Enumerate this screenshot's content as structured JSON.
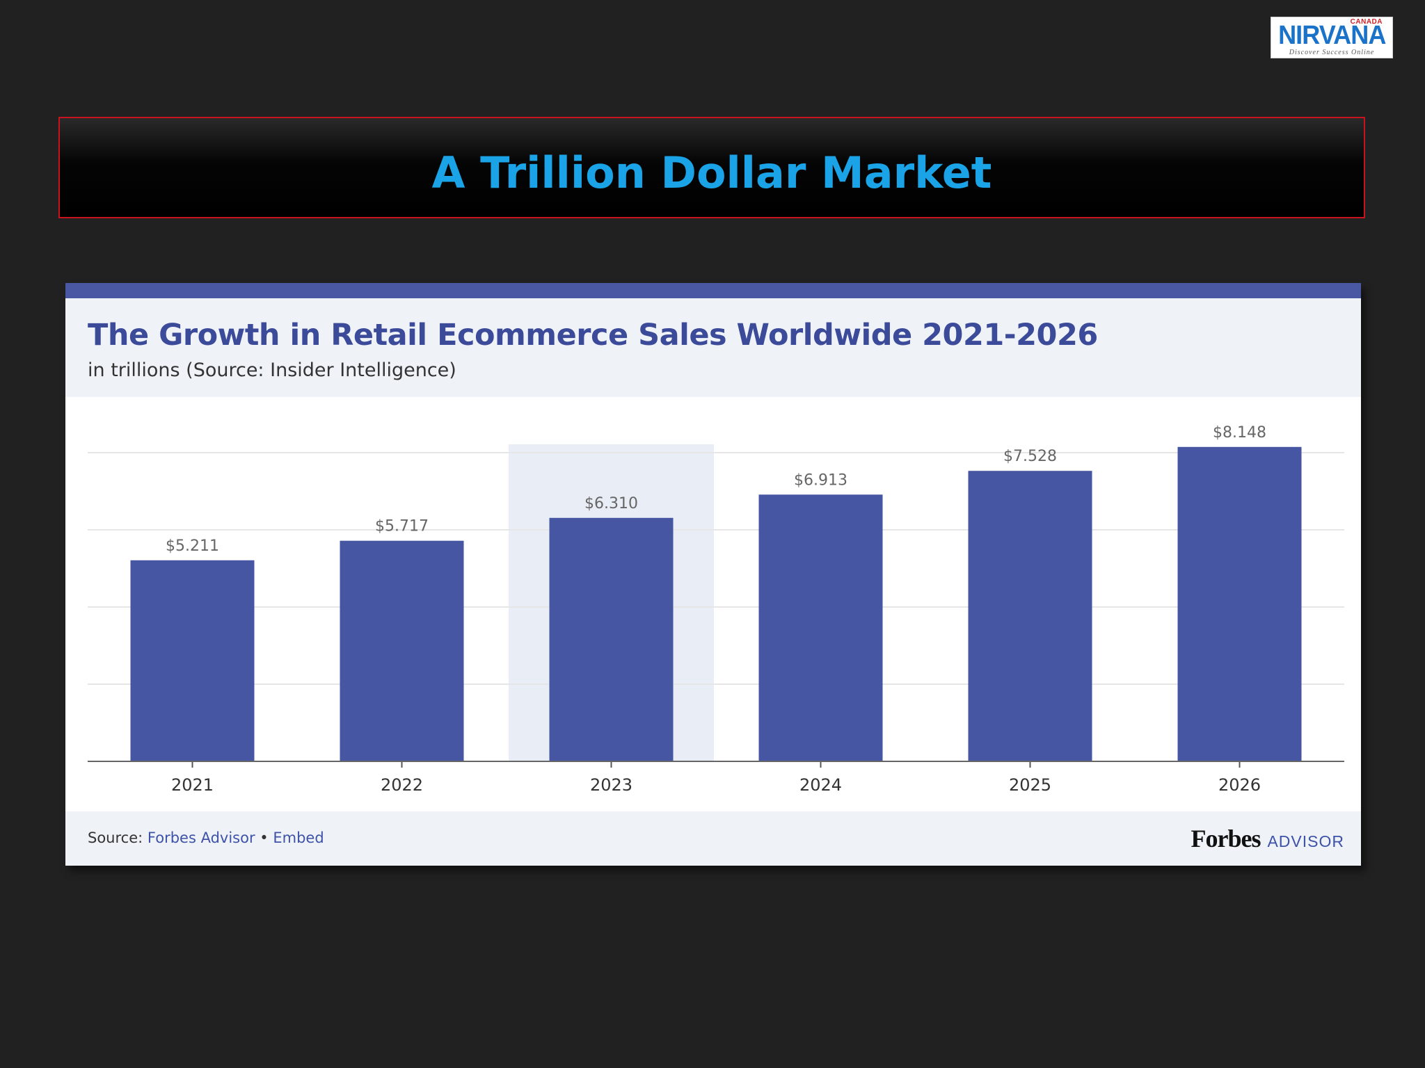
{
  "logo": {
    "brand": "NIRVANA",
    "region": "CANADA",
    "tagline": "Discover Success Online"
  },
  "slide": {
    "title": "A Trillion Dollar Market"
  },
  "chart_card": {
    "source_prefix": "Source:",
    "source_link": "Forbes Advisor",
    "separator": "•",
    "embed_link": "Embed",
    "publisher": "Forbes",
    "publisher_suffix": "ADVISOR"
  },
  "colors": {
    "background": "#212121",
    "banner_title": "#1aa3e6",
    "banner_border": "#c8121d",
    "bar": "#4756a3",
    "highlight_band": "#e9edf5",
    "header_band": "#eff3f8"
  },
  "chart_data": {
    "type": "bar",
    "title": "The Growth in Retail Ecommerce Sales Worldwide 2021-2026",
    "subtitle": "in trillions (Source: Insider Intelligence)",
    "categories": [
      "2021",
      "2022",
      "2023",
      "2024",
      "2025",
      "2026"
    ],
    "values": [
      5.211,
      5.717,
      6.31,
      6.913,
      7.528,
      8.148
    ],
    "value_labels": [
      "$5.211",
      "$5.717",
      "$6.310",
      "$6.913",
      "$7.528",
      "$8.148"
    ],
    "highlighted_category": "2023",
    "ylim": [
      0,
      8
    ],
    "grid": true,
    "xlabel": "",
    "ylabel": ""
  }
}
